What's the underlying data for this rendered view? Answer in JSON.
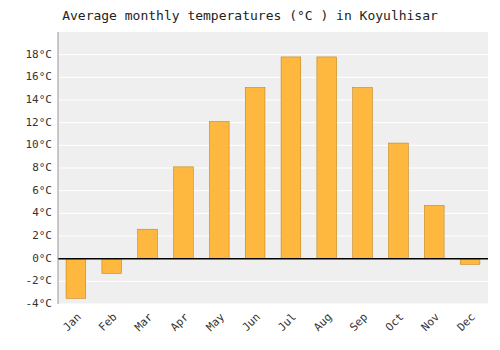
{
  "chart_data": {
    "type": "bar",
    "title": "Average monthly temperatures (°C ) in Koyulhisar",
    "categories": [
      "Jan",
      "Feb",
      "Mar",
      "Apr",
      "May",
      "Jun",
      "Jul",
      "Aug",
      "Sep",
      "Oct",
      "Nov",
      "Dec"
    ],
    "values": [
      -3.5,
      -1.3,
      2.6,
      8.1,
      12.1,
      15.1,
      17.8,
      17.8,
      15.1,
      10.2,
      4.7,
      -0.5
    ],
    "color": "#FFB83F",
    "ylim": [
      -4,
      20
    ],
    "yticks": [
      {
        "value": -4,
        "label": "-4°C"
      },
      {
        "value": -2,
        "label": "-2°C"
      },
      {
        "value": 0,
        "label": "0°C"
      },
      {
        "value": 2,
        "label": "2°C"
      },
      {
        "value": 4,
        "label": "4°C"
      },
      {
        "value": 6,
        "label": "6°C"
      },
      {
        "value": 8,
        "label": "8°C"
      },
      {
        "value": 10,
        "label": "10°C"
      },
      {
        "value": 12,
        "label": "12°C"
      },
      {
        "value": 14,
        "label": "14°C"
      },
      {
        "value": 16,
        "label": "16°C"
      },
      {
        "value": 18,
        "label": "18°C"
      }
    ],
    "grid": true
  }
}
